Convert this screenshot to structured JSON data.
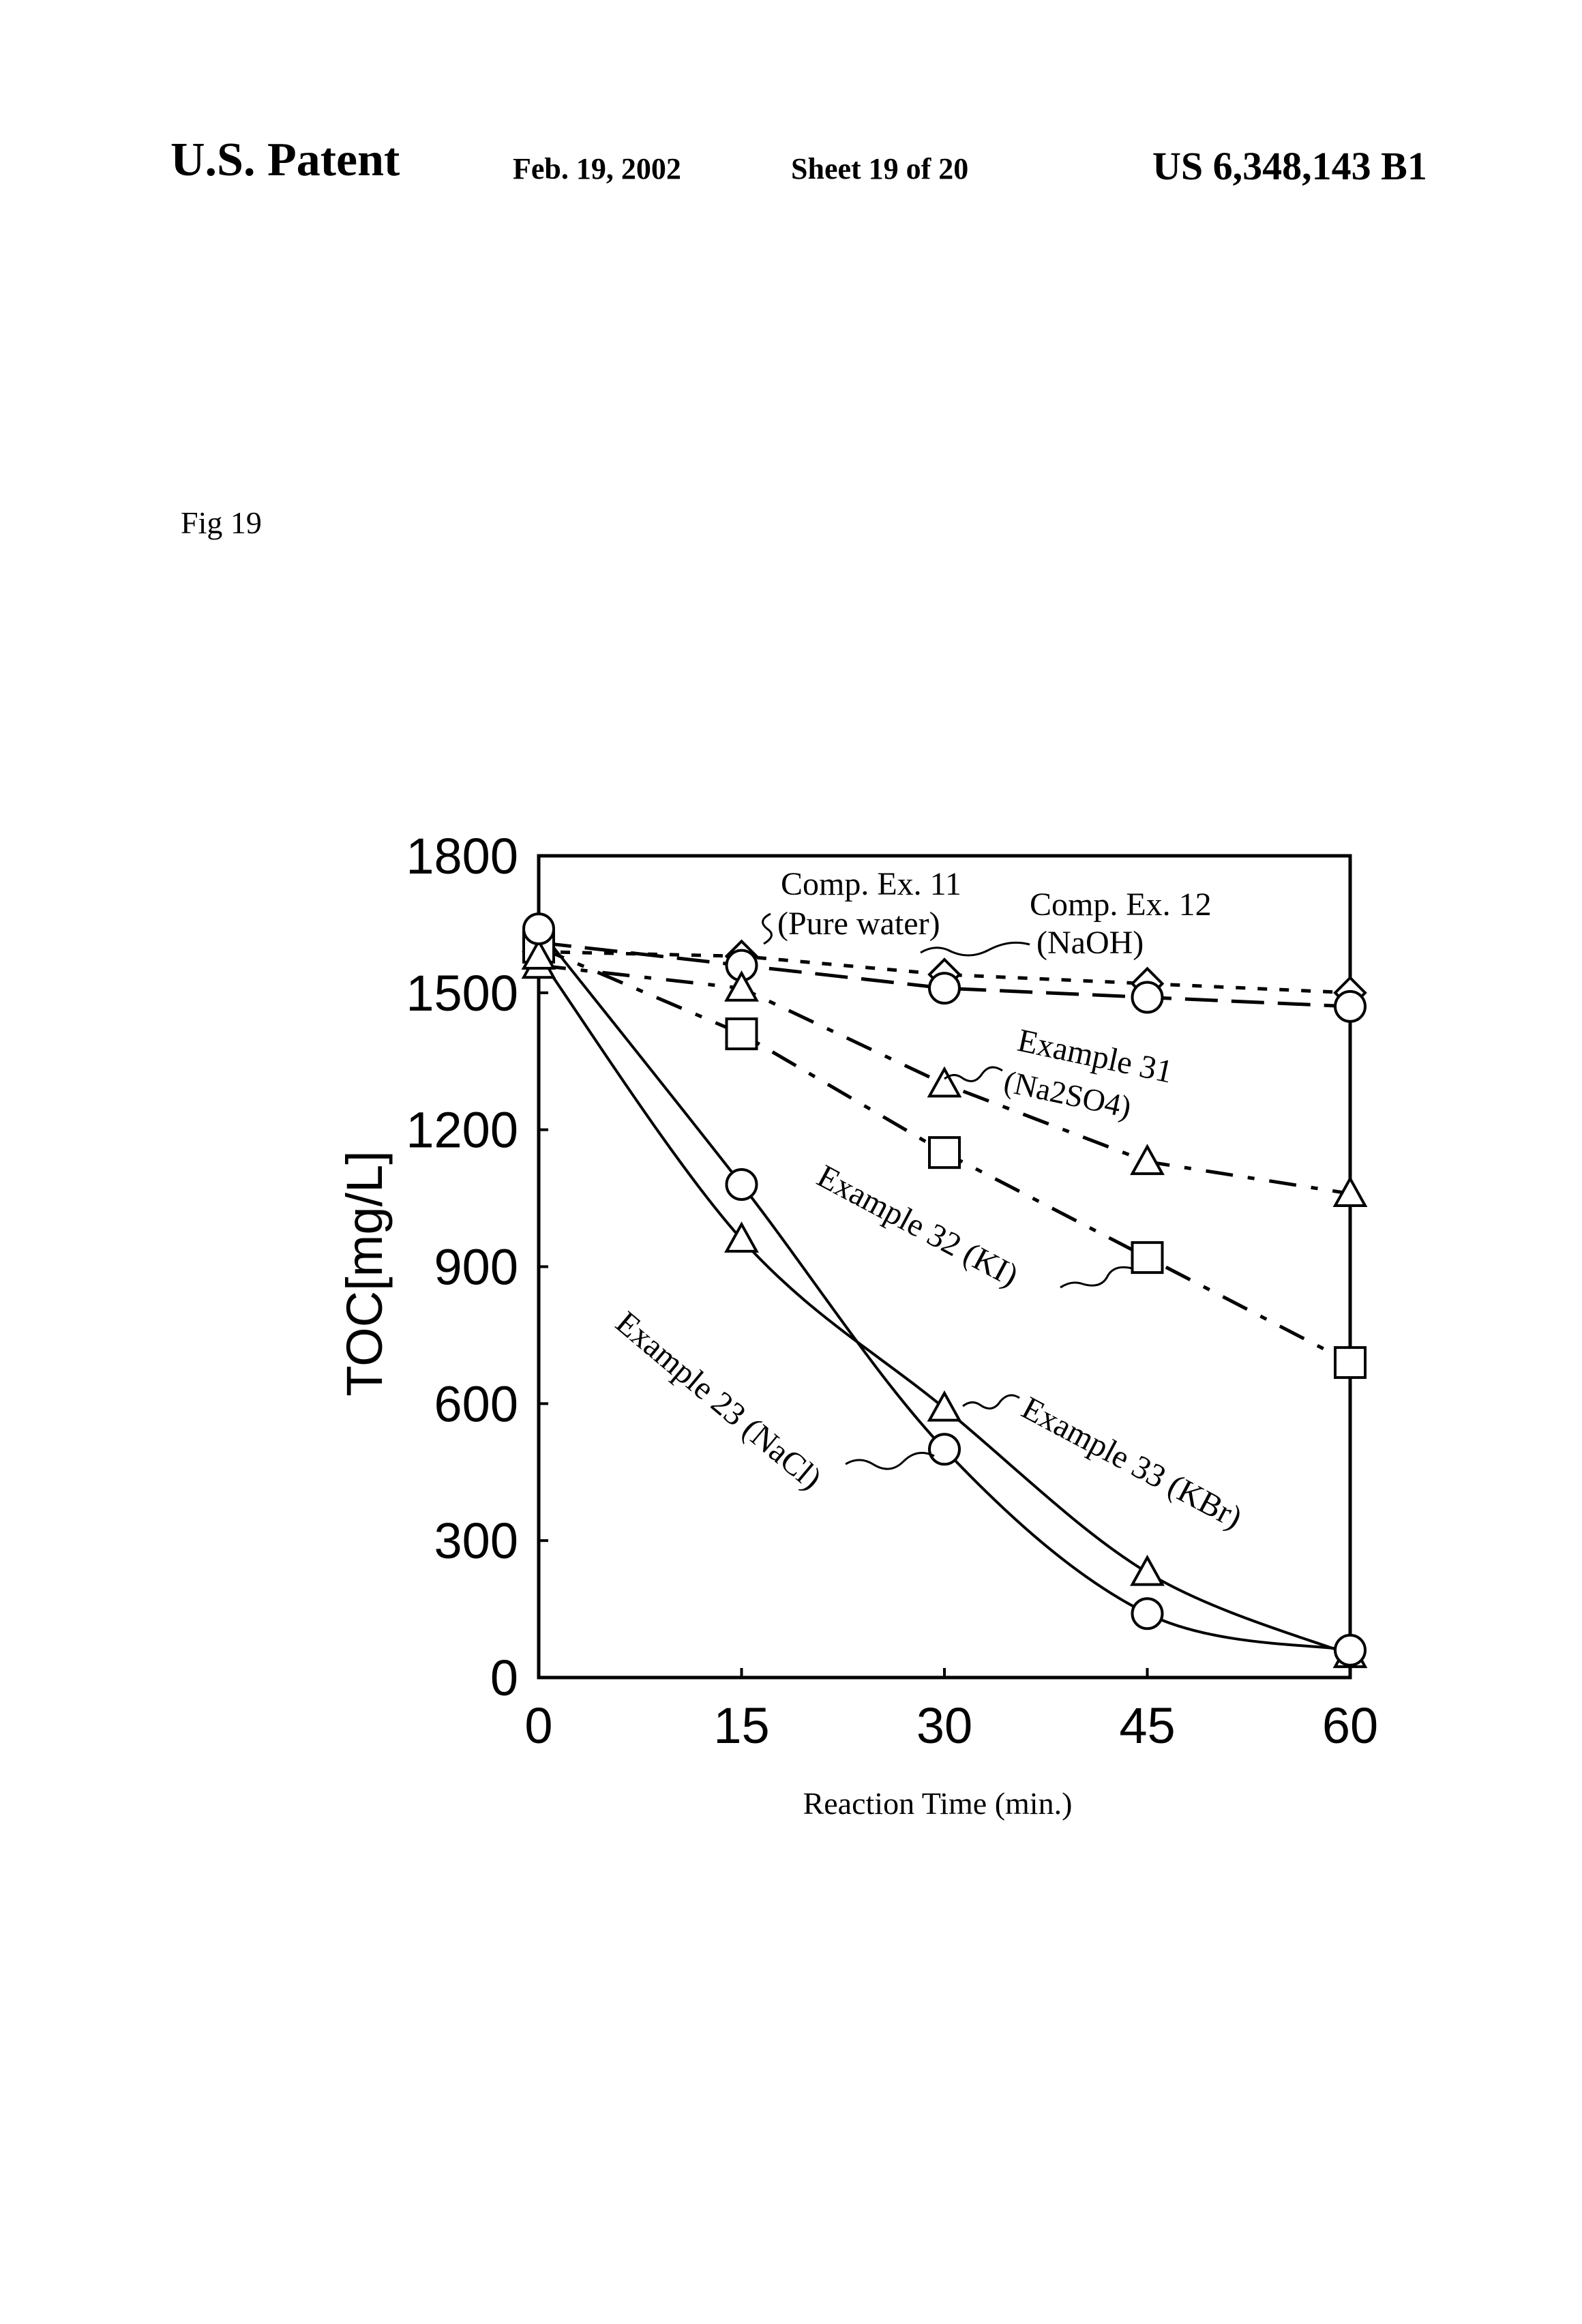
{
  "header": {
    "left": "U.S. Patent",
    "date": "Feb. 19, 2002",
    "sheet": "Sheet 19 of 20",
    "patent_number": "US 6,348,143 B1"
  },
  "figure_label": "Fig 19",
  "chart_data": {
    "type": "line",
    "title": "",
    "xlabel": "Reaction Time (min.)",
    "ylabel": "TOC[mg/L]",
    "x": [
      0,
      15,
      30,
      45,
      60
    ],
    "xlim": [
      0,
      60
    ],
    "ylim": [
      0,
      1800
    ],
    "xticks": [
      "0",
      "15",
      "30",
      "45",
      "60"
    ],
    "yticks": [
      "0",
      "300",
      "600",
      "900",
      "1200",
      "1500",
      "1800"
    ],
    "grid": false,
    "series": [
      {
        "name": "Comp. Ex. 11 (Pure water)",
        "marker": "diamond",
        "line": "dotted",
        "values": [
          1590,
          1580,
          1540,
          1520,
          1500
        ]
      },
      {
        "name": "Comp. Ex. 12 (NaOH)",
        "marker": "circle",
        "line": "long-dash",
        "values": [
          1610,
          1560,
          1510,
          1490,
          1470
        ]
      },
      {
        "name": "Example 31 (Na2SO4)",
        "marker": "triangle",
        "line": "dash-dot",
        "values": [
          1560,
          1510,
          1300,
          1130,
          1060
        ]
      },
      {
        "name": "Example 32 (KI)",
        "marker": "square",
        "line": "dash-dot",
        "values": [
          1600,
          1410,
          1150,
          920,
          690
        ]
      },
      {
        "name": "Example 33 (KBr)",
        "marker": "triangle",
        "line": "solid",
        "values": [
          1580,
          960,
          590,
          230,
          50
        ]
      },
      {
        "name": "Example 23 (NaCl)",
        "marker": "circle",
        "line": "solid",
        "values": [
          1640,
          1080,
          500,
          140,
          60
        ]
      }
    ],
    "annotations": [
      {
        "text": "Comp. Ex. 11",
        "sub": "(Pure water)"
      },
      {
        "text": "Comp. Ex. 12",
        "sub": "(NaOH)"
      },
      {
        "text": "Example 31",
        "sub": "(Na2SO4)"
      },
      {
        "text": "Example 32 (KI)"
      },
      {
        "text": "Example 33 (KBr)"
      },
      {
        "text": "Example 23 (NaCl)"
      }
    ]
  }
}
